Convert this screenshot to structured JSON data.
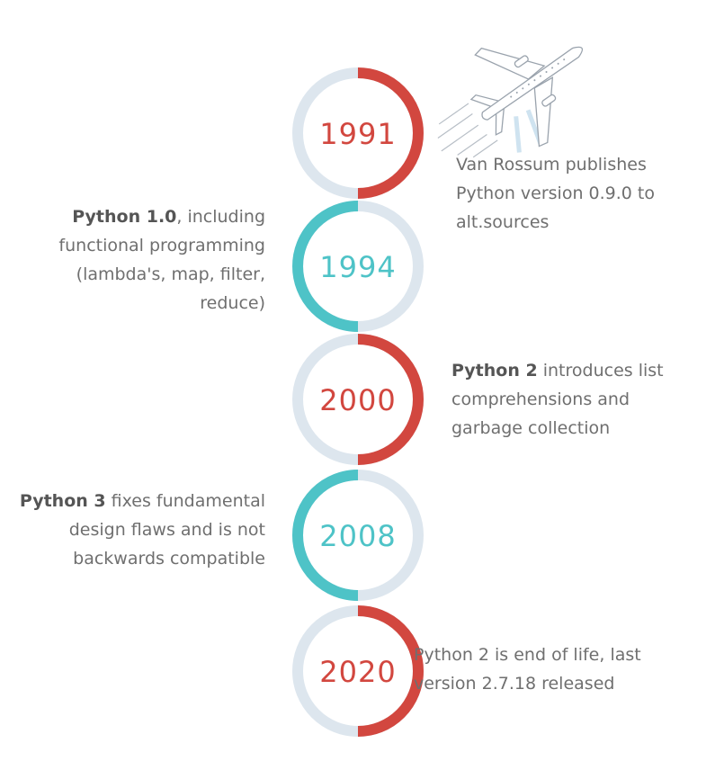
{
  "colors": {
    "red": "#d2473f",
    "teal": "#4ec3c7",
    "ring": "#dde6ee",
    "text": "#6f6f6f"
  },
  "illustration": "airplane-icon",
  "events": [
    {
      "year": "1991",
      "side": "right",
      "color": "red",
      "highlight": "",
      "text": "Van Rossum publishes Python version 0.9.0 to alt.sources"
    },
    {
      "year": "1994",
      "side": "left",
      "color": "teal",
      "highlight": "Python 1.0",
      "text": ", including functional programming (lambda's, map, filter, reduce)"
    },
    {
      "year": "2000",
      "side": "right",
      "color": "red",
      "highlight": "Python 2",
      "text": " introduces list comprehensions and garbage collection"
    },
    {
      "year": "2008",
      "side": "left",
      "color": "teal",
      "highlight": "Python 3",
      "text": " fixes fundamental design flaws and is not backwards compatible"
    },
    {
      "year": "2020",
      "side": "right",
      "color": "red",
      "highlight": "",
      "text": "Python 2 is end of life, last version 2.7.18 released"
    }
  ]
}
